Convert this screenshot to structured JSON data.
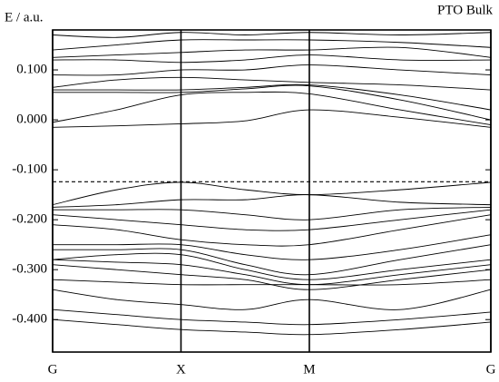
{
  "chart_data": {
    "type": "line",
    "title": "PTO Bulk",
    "y_label": "E / a.u.",
    "xlim": [
      0,
      3.414
    ],
    "xticks": [
      {
        "value": 0,
        "label": "G"
      },
      {
        "value": 1,
        "label": "X"
      },
      {
        "value": 2,
        "label": "M"
      },
      {
        "value": 3.414,
        "label": "G"
      }
    ],
    "x": [
      0,
      0.5,
      1,
      1.5,
      2,
      2.707,
      3.414
    ],
    "ylim": [
      -0.465,
      0.18
    ],
    "yticks": [
      {
        "value": 0.1,
        "label": "0.100"
      },
      {
        "value": 0,
        "label": "0.000"
      },
      {
        "value": -0.1,
        "label": "-0.100"
      },
      {
        "value": -0.2,
        "label": "-0.200"
      },
      {
        "value": -0.3,
        "label": "-0.300"
      },
      {
        "value": -0.4,
        "label": "-0.400"
      }
    ],
    "fermi_level": -0.124,
    "color": "#000000",
    "series": [
      {
        "values": [
          -0.015,
          -0.012,
          -0.008,
          -0.002,
          0.02,
          0.005,
          -0.015
        ]
      },
      {
        "values": [
          -0.005,
          0.02,
          0.05,
          0.055,
          0.052,
          0.02,
          -0.01
        ]
      },
      {
        "values": [
          0.055,
          0.055,
          0.055,
          0.062,
          0.068,
          0.04,
          0.0
        ]
      },
      {
        "values": [
          0.06,
          0.06,
          0.06,
          0.065,
          0.07,
          0.05,
          0.02
        ]
      },
      {
        "values": [
          0.065,
          0.08,
          0.085,
          0.08,
          0.075,
          0.07,
          0.06
        ]
      },
      {
        "values": [
          0.09,
          0.09,
          0.1,
          0.1,
          0.11,
          0.1,
          0.09
        ]
      },
      {
        "values": [
          0.12,
          0.12,
          0.115,
          0.12,
          0.13,
          0.12,
          0.12
        ]
      },
      {
        "values": [
          0.125,
          0.13,
          0.135,
          0.14,
          0.14,
          0.145,
          0.125
        ]
      },
      {
        "values": [
          0.14,
          0.15,
          0.16,
          0.16,
          0.16,
          0.155,
          0.145
        ]
      },
      {
        "values": [
          0.17,
          0.165,
          0.175,
          0.17,
          0.175,
          0.17,
          0.175
        ]
      },
      {
        "values": [
          -0.17,
          -0.14,
          -0.125,
          -0.14,
          -0.15,
          -0.14,
          -0.125
        ]
      },
      {
        "values": [
          -0.175,
          -0.17,
          -0.16,
          -0.16,
          -0.15,
          -0.165,
          -0.17
        ]
      },
      {
        "values": [
          -0.18,
          -0.18,
          -0.18,
          -0.19,
          -0.2,
          -0.18,
          -0.175
        ]
      },
      {
        "values": [
          -0.19,
          -0.2,
          -0.21,
          -0.22,
          -0.22,
          -0.2,
          -0.18
        ]
      },
      {
        "values": [
          -0.21,
          -0.22,
          -0.24,
          -0.25,
          -0.25,
          -0.22,
          -0.19
        ]
      },
      {
        "values": [
          -0.25,
          -0.25,
          -0.25,
          -0.27,
          -0.28,
          -0.26,
          -0.23
        ]
      },
      {
        "values": [
          -0.26,
          -0.26,
          -0.26,
          -0.29,
          -0.31,
          -0.28,
          -0.25
        ]
      },
      {
        "values": [
          -0.28,
          -0.27,
          -0.27,
          -0.3,
          -0.32,
          -0.3,
          -0.28
        ]
      },
      {
        "values": [
          -0.28,
          -0.285,
          -0.29,
          -0.31,
          -0.33,
          -0.31,
          -0.29
        ]
      },
      {
        "values": [
          -0.29,
          -0.3,
          -0.31,
          -0.32,
          -0.34,
          -0.32,
          -0.3
        ]
      },
      {
        "values": [
          -0.32,
          -0.325,
          -0.33,
          -0.33,
          -0.33,
          -0.33,
          -0.32
        ]
      },
      {
        "values": [
          -0.34,
          -0.36,
          -0.37,
          -0.38,
          -0.36,
          -0.38,
          -0.34
        ]
      },
      {
        "values": [
          -0.38,
          -0.39,
          -0.4,
          -0.405,
          -0.41,
          -0.4,
          -0.385
        ]
      },
      {
        "values": [
          -0.4,
          -0.41,
          -0.42,
          -0.425,
          -0.43,
          -0.42,
          -0.405
        ]
      }
    ]
  }
}
